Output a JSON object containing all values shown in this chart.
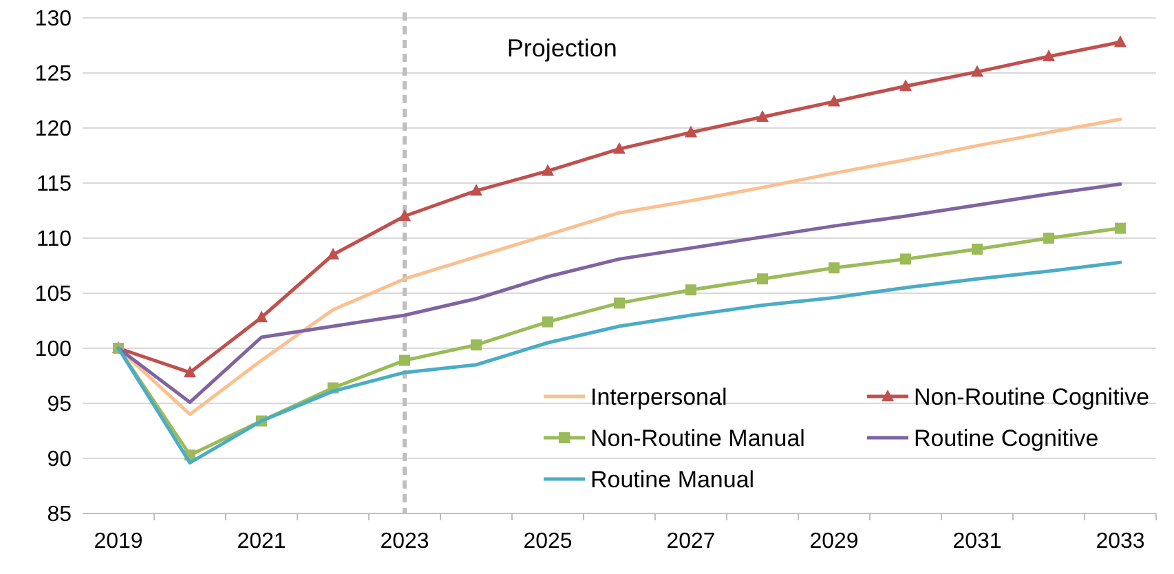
{
  "chart_data": {
    "type": "line",
    "categories": [
      "2019",
      null,
      "2021",
      null,
      "2023",
      null,
      "2025",
      null,
      "2027",
      null,
      "2029",
      null,
      "2031",
      null,
      "2033"
    ],
    "ylim": [
      85,
      130
    ],
    "yticks": [
      85,
      90,
      95,
      100,
      105,
      110,
      115,
      120,
      125,
      130
    ],
    "grid": "y",
    "legend": "bottom right",
    "annotations": [
      "Projection"
    ],
    "ref_lines": [
      {
        "axis": "x",
        "value": "2023",
        "color": "#bfbfbf",
        "line_style": "dashed"
      }
    ],
    "series": [
      {
        "name": "Interpersonal",
        "color": "#fac090",
        "marker": "none",
        "values": [
          100,
          94,
          98.9,
          103.5,
          106.3,
          108.3,
          110.3,
          112.3,
          113.4,
          114.6,
          115.9,
          117.1,
          118.4,
          119.6,
          120.8
        ]
      },
      {
        "name": "Non-Routine Cognitive",
        "color": "#c0504d",
        "marker": "triangle",
        "values": [
          100,
          97.8,
          102.8,
          108.5,
          112,
          114.3,
          116.1,
          118.1,
          119.6,
          121,
          122.4,
          123.8,
          125.1,
          126.5,
          127.8
        ]
      },
      {
        "name": "Non-Routine Manual",
        "color": "#9bbb59",
        "marker": "square",
        "values": [
          100,
          90.3,
          93.4,
          96.4,
          98.9,
          100.3,
          102.4,
          104.1,
          105.3,
          106.3,
          107.3,
          108.1,
          109,
          110,
          110.9
        ]
      },
      {
        "name": "Routine Cognitive",
        "color": "#8064a2",
        "marker": "none",
        "values": [
          100,
          95.1,
          101,
          102,
          103,
          104.5,
          106.5,
          108.1,
          109.1,
          110.1,
          111.1,
          112,
          113,
          114,
          114.9
        ]
      },
      {
        "name": "Routine Manual",
        "color": "#4bacc6",
        "marker": "none",
        "values": [
          100,
          89.6,
          93.4,
          96.1,
          97.8,
          98.5,
          100.5,
          102,
          103,
          103.9,
          104.6,
          105.5,
          106.3,
          107,
          107.8
        ]
      }
    ]
  }
}
